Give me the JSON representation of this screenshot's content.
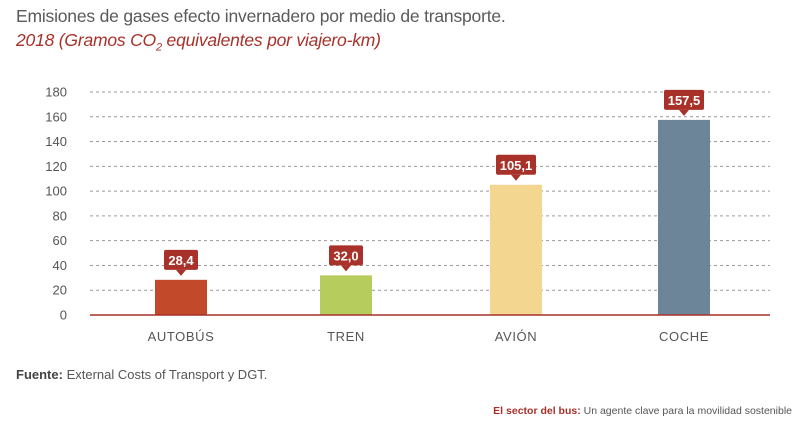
{
  "header": {
    "title": "Emisiones de gases efecto invernadero por medio de transporte.",
    "subtitle_pre": "2018 (Gramos CO",
    "subtitle_sub": "2",
    "subtitle_post": " equivalentes por viajero-km)"
  },
  "chart_data": {
    "type": "bar",
    "categories": [
      "AUTOBÚS",
      "TREN",
      "AVIÓN",
      "COCHE"
    ],
    "values": [
      28.4,
      32.0,
      105.1,
      157.5
    ],
    "value_labels": [
      "28,4",
      "32,0",
      "105,1",
      "157,5"
    ],
    "colors": [
      "#c24a2a",
      "#b6cd5e",
      "#f3d690",
      "#6d8599"
    ],
    "label_color": "#a8312a",
    "ylim": [
      0,
      180
    ],
    "yticks": [
      0,
      20,
      40,
      60,
      80,
      100,
      120,
      140,
      160,
      180
    ],
    "grid": true
  },
  "source": {
    "label": "Fuente:",
    "text": " External Costs of Transport y DGT."
  },
  "footer": {
    "label": "El sector del bus:",
    "text": " Un agente clave para la movilidad sostenible"
  }
}
